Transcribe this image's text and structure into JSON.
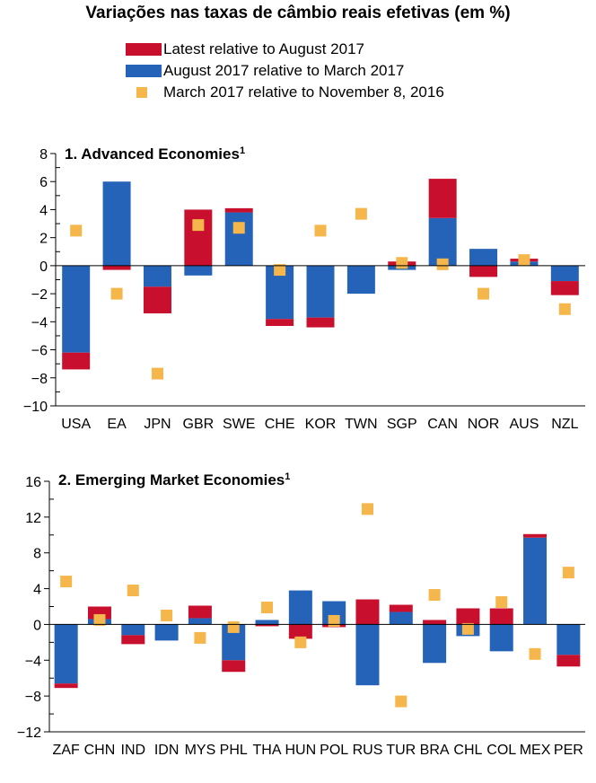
{
  "title": "Variações nas taxas de câmbio reais efetivas (em %)",
  "colors": {
    "latest": "#c8102e",
    "aug_mar": "#2563b8",
    "mar_nov": "#f5b64c"
  },
  "legend": [
    {
      "label": "Latest relative to August 2017",
      "color": "#c8102e",
      "marker": "bar"
    },
    {
      "label": "August 2017 relative to March 2017",
      "color": "#2563b8",
      "marker": "bar"
    },
    {
      "label": "March 2017 relative to November 8, 2016",
      "color": "#f5b64c",
      "marker": "square"
    }
  ],
  "chart_data": [
    {
      "type": "bar",
      "title": "1. Advanced Economies",
      "title_sup": "1",
      "categories": [
        "USA",
        "EA",
        "JPN",
        "GBR",
        "SWE",
        "CHE",
        "KOR",
        "TWN",
        "SGP",
        "CAN",
        "NOR",
        "AUS",
        "NZL"
      ],
      "ylim": [
        -10,
        8
      ],
      "yticks": [
        -10,
        -8,
        -6,
        -4,
        -2,
        0,
        2,
        4,
        6,
        8
      ],
      "series": [
        {
          "name": "August 2017 relative to March 2017",
          "values": [
            -6.2,
            6.0,
            -1.5,
            -0.7,
            3.8,
            -3.8,
            -3.7,
            -2.0,
            -0.3,
            3.4,
            1.2,
            0.3,
            -1.1
          ]
        },
        {
          "name": "Latest relative to August 2017",
          "values": [
            -1.2,
            -0.3,
            -1.9,
            4.0,
            0.3,
            -0.5,
            -0.7,
            0.0,
            0.3,
            2.8,
            -0.8,
            0.2,
            -1.0
          ]
        },
        {
          "name": "March 2017 relative to November 8, 2016",
          "values": [
            2.5,
            -2.0,
            -7.7,
            2.9,
            2.7,
            -0.3,
            2.5,
            3.7,
            0.2,
            0.1,
            -2.0,
            0.4,
            -3.1
          ]
        }
      ]
    },
    {
      "type": "bar",
      "title": "2. Emerging Market Economies",
      "title_sup": "1",
      "categories": [
        "ZAF",
        "CHN",
        "IND",
        "IDN",
        "MYS",
        "PHL",
        "THA",
        "HUN",
        "POL",
        "RUS",
        "TUR",
        "BRA",
        "CHL",
        "COL",
        "MEX",
        "PER"
      ],
      "ylim": [
        -12,
        16
      ],
      "yticks": [
        -12,
        -8,
        -4,
        0,
        4,
        8,
        12,
        16
      ],
      "series": [
        {
          "name": "August 2017 relative to March 2017",
          "values": [
            -6.6,
            0.6,
            -1.2,
            -1.8,
            0.7,
            -4.0,
            0.5,
            3.8,
            2.6,
            -6.8,
            1.4,
            -4.3,
            -1.3,
            -3.0,
            9.7,
            -3.4
          ]
        },
        {
          "name": "Latest relative to August 2017",
          "values": [
            -0.5,
            1.4,
            -1.0,
            0.0,
            1.4,
            -1.3,
            -0.2,
            -1.6,
            -0.3,
            2.8,
            0.8,
            0.5,
            1.8,
            1.8,
            0.4,
            -1.3
          ]
        },
        {
          "name": "March 2017 relative to November 8, 2016",
          "values": [
            4.8,
            0.5,
            3.8,
            1.0,
            -1.5,
            -0.3,
            1.9,
            -2.0,
            0.4,
            12.9,
            -8.6,
            3.3,
            -0.5,
            2.5,
            -3.3,
            5.8
          ]
        }
      ]
    }
  ]
}
